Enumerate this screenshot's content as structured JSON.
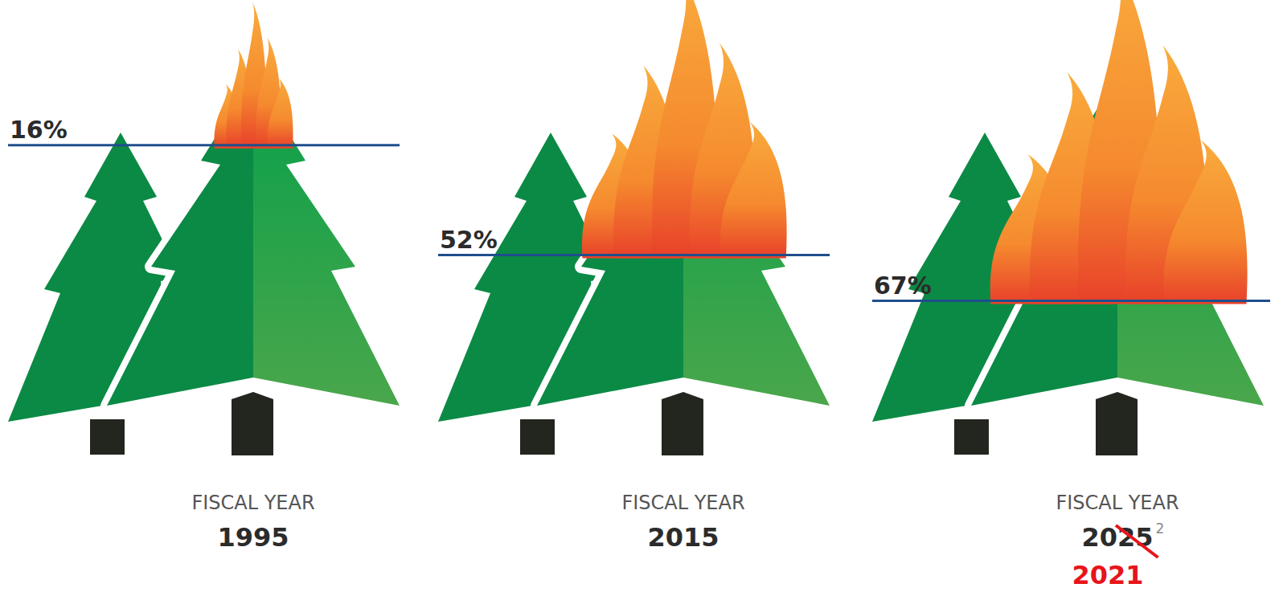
{
  "chart_data": {
    "type": "pictogram",
    "category_label": "FISCAL YEAR",
    "categories": [
      "1995",
      "2015",
      "2025"
    ],
    "values": [
      16,
      52,
      67
    ],
    "value_labels": [
      "16%",
      "52%",
      "67%"
    ],
    "data_labels": true,
    "struck_part": [
      null,
      null,
      "25"
    ],
    "footnotes": [
      null,
      null,
      "2"
    ],
    "corrections": [
      null,
      null,
      "2021"
    ],
    "ylim": [
      0,
      100
    ],
    "tick_labels": false,
    "color": "#1f4e8c"
  }
}
